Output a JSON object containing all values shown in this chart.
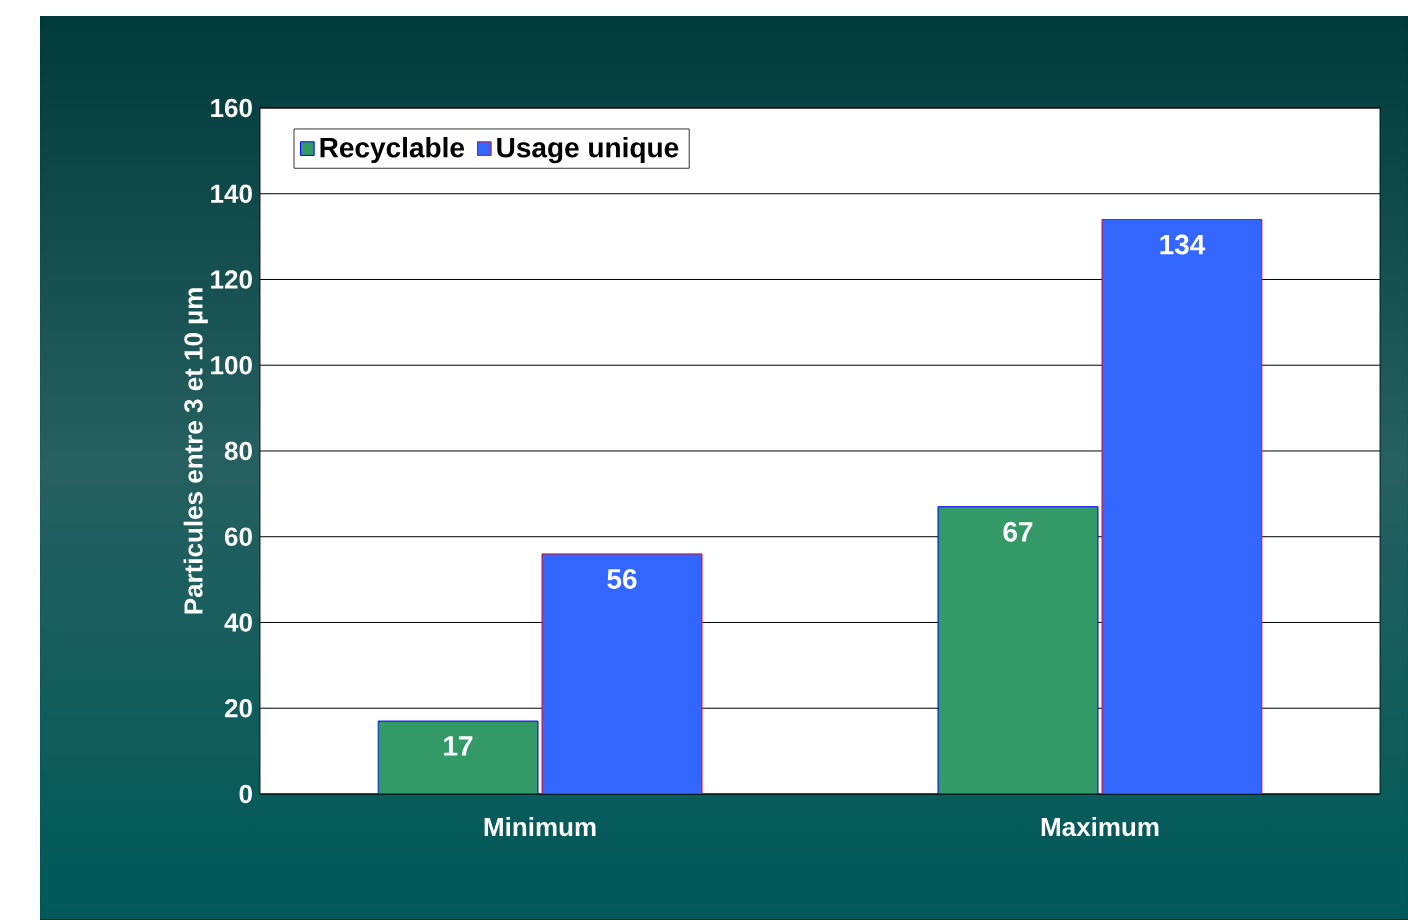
{
  "chart_data": {
    "type": "bar",
    "ylabel": "Particules entre 3 et 10 µm",
    "categories": [
      "Minimum",
      "Maximum"
    ],
    "series": [
      {
        "name": "Recyclable",
        "color": "#339966",
        "values": [
          17,
          67
        ]
      },
      {
        "name": "Usage unique",
        "color": "#3366ff",
        "values": [
          56,
          134
        ]
      }
    ],
    "ylim": [
      0,
      160
    ],
    "yticks": [
      0,
      20,
      40,
      60,
      80,
      100,
      120,
      140,
      160
    ],
    "grid": "y",
    "legend": "top left",
    "data_labels": true
  }
}
